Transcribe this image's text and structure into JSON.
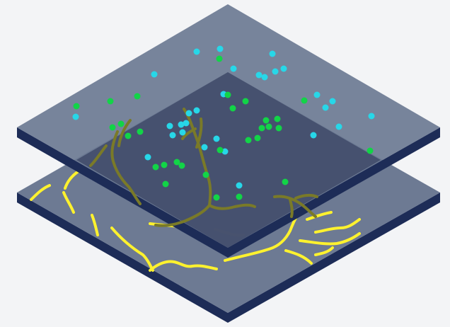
{
  "colors": {
    "background": "#f3f4f6",
    "slab_top": "#6d7a93",
    "slab_side": "#1d2c57",
    "slab_top_overlap": "#3f4a68",
    "yellow_path": "#fff22e",
    "olive_path": "#7a7a28",
    "cyan_dot": "#27d7e8",
    "green_dot": "#12d447"
  },
  "layers": [
    {
      "name": "bottom-layer",
      "content": "yellow-paths"
    },
    {
      "name": "top-layer",
      "content": "dots"
    }
  ]
}
